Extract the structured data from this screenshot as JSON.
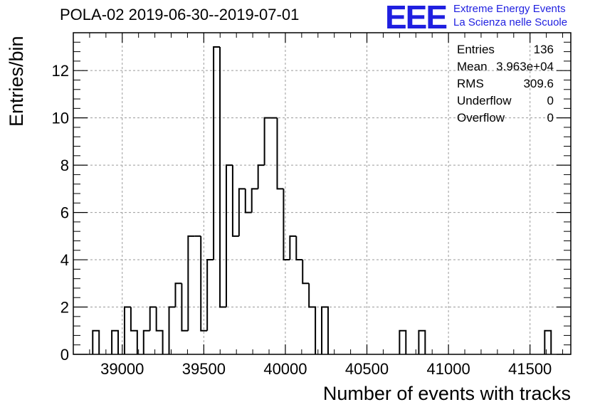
{
  "title": "POLA-02 2019-06-30--2019-07-01",
  "logo": {
    "mark": "EEE",
    "line1": "Extreme Energy Events",
    "line2": "La Scienza nelle Scuole",
    "color": "#1f1fe0"
  },
  "stats": [
    {
      "label": "Entries",
      "value": "136"
    },
    {
      "label": "Mean",
      "value": "3.963e+04"
    },
    {
      "label": "RMS",
      "value": "309.6"
    },
    {
      "label": "Underflow",
      "value": "0"
    },
    {
      "label": "Overflow",
      "value": "0"
    }
  ],
  "chart_data": {
    "type": "histogram",
    "xlabel": "Number of events with tracks",
    "ylabel": "Entries/bin",
    "xlim": [
      38700,
      41750
    ],
    "ylim": [
      0,
      13.6
    ],
    "bin_width": 39,
    "x_ticks": [
      39000,
      39500,
      40000,
      40500,
      41000,
      41500
    ],
    "y_ticks": [
      0,
      2,
      4,
      6,
      8,
      10,
      12
    ],
    "grid": true,
    "bins": [
      {
        "x0": 38819,
        "x1": 38858,
        "count": 1
      },
      {
        "x0": 38936,
        "x1": 38975,
        "count": 1
      },
      {
        "x0": 39014,
        "x1": 39053,
        "count": 2
      },
      {
        "x0": 39053,
        "x1": 39092,
        "count": 1
      },
      {
        "x0": 39131,
        "x1": 39170,
        "count": 1
      },
      {
        "x0": 39170,
        "x1": 39209,
        "count": 2
      },
      {
        "x0": 39209,
        "x1": 39248,
        "count": 1
      },
      {
        "x0": 39287,
        "x1": 39326,
        "count": 2
      },
      {
        "x0": 39326,
        "x1": 39365,
        "count": 3
      },
      {
        "x0": 39365,
        "x1": 39404,
        "count": 1
      },
      {
        "x0": 39404,
        "x1": 39443,
        "count": 5
      },
      {
        "x0": 39443,
        "x1": 39482,
        "count": 5
      },
      {
        "x0": 39482,
        "x1": 39521,
        "count": 1
      },
      {
        "x0": 39521,
        "x1": 39560,
        "count": 4
      },
      {
        "x0": 39560,
        "x1": 39599,
        "count": 13
      },
      {
        "x0": 39599,
        "x1": 39638,
        "count": 2
      },
      {
        "x0": 39638,
        "x1": 39677,
        "count": 8
      },
      {
        "x0": 39677,
        "x1": 39716,
        "count": 5
      },
      {
        "x0": 39716,
        "x1": 39755,
        "count": 7
      },
      {
        "x0": 39755,
        "x1": 39794,
        "count": 6
      },
      {
        "x0": 39794,
        "x1": 39833,
        "count": 7
      },
      {
        "x0": 39833,
        "x1": 39872,
        "count": 8
      },
      {
        "x0": 39872,
        "x1": 39911,
        "count": 10
      },
      {
        "x0": 39911,
        "x1": 39950,
        "count": 10
      },
      {
        "x0": 39950,
        "x1": 39989,
        "count": 7
      },
      {
        "x0": 39989,
        "x1": 40028,
        "count": 4
      },
      {
        "x0": 40028,
        "x1": 40067,
        "count": 5
      },
      {
        "x0": 40067,
        "x1": 40106,
        "count": 4
      },
      {
        "x0": 40106,
        "x1": 40145,
        "count": 3
      },
      {
        "x0": 40145,
        "x1": 40184,
        "count": 2
      },
      {
        "x0": 40223,
        "x1": 40262,
        "count": 2
      },
      {
        "x0": 40700,
        "x1": 40739,
        "count": 1
      },
      {
        "x0": 40818,
        "x1": 40857,
        "count": 1
      },
      {
        "x0": 41590,
        "x1": 41629,
        "count": 1
      }
    ]
  }
}
